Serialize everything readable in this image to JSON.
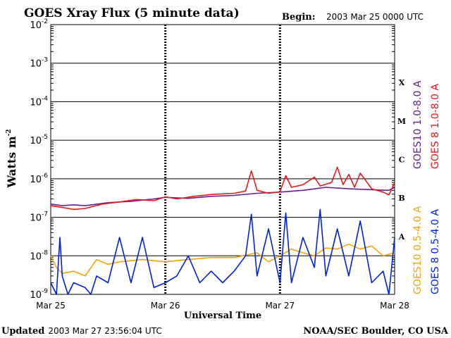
{
  "chart_data": {
    "type": "line",
    "title": "GOES Xray Flux (5 minute data)",
    "begin_label": "Begin:",
    "begin_value": "2003 Mar 25 0000 UTC",
    "ylabel": "Watts m",
    "ylabel_sup": "-2",
    "xlabel": "Universal Time",
    "y_scale": "log",
    "ylim": [
      1e-09,
      0.01
    ],
    "y_ticks": [
      {
        "exp": "-2",
        "value": 0.01
      },
      {
        "exp": "-3",
        "value": 0.001
      },
      {
        "exp": "-4",
        "value": 0.0001
      },
      {
        "exp": "-5",
        "value": 1e-05
      },
      {
        "exp": "-6",
        "value": 1e-06
      },
      {
        "exp": "-7",
        "value": 1e-07
      },
      {
        "exp": "-8",
        "value": 1e-08
      },
      {
        "exp": "-9",
        "value": 1e-09
      }
    ],
    "x_ticks": [
      "Mar 25",
      "Mar 26",
      "Mar 27",
      "Mar 28"
    ],
    "xlim_days": [
      0,
      3
    ],
    "flare_classes": [
      {
        "label": "X",
        "value": 0.000316
      },
      {
        "label": "M",
        "value": 3.16e-05
      },
      {
        "label": "C",
        "value": 3.16e-06
      },
      {
        "label": "B",
        "value": 3.16e-07
      },
      {
        "label": "A",
        "value": 3.16e-08
      }
    ],
    "series": [
      {
        "name": "GOES10 1.0-8.0 A",
        "color": "#6a1b9a",
        "x_days": [
          0.0,
          0.1,
          0.2,
          0.3,
          0.5,
          0.7,
          0.9,
          1.0,
          1.2,
          1.4,
          1.6,
          1.8,
          2.0,
          2.2,
          2.4,
          2.6,
          2.8,
          2.95,
          3.0
        ],
        "values": [
          2.2e-07,
          2e-07,
          2.1e-07,
          2e-07,
          2.4e-07,
          2.6e-07,
          3e-07,
          3.3e-07,
          3.1e-07,
          3.5e-07,
          3.7e-07,
          4.2e-07,
          4.5e-07,
          5e-07,
          6e-07,
          5.5e-07,
          5.2e-07,
          5e-07,
          6e-07
        ]
      },
      {
        "name": "GOES 8 1.0-8.0 A",
        "color": "#e41a1c",
        "x_days": [
          0.0,
          0.1,
          0.2,
          0.3,
          0.45,
          0.6,
          0.75,
          0.9,
          1.0,
          1.1,
          1.25,
          1.4,
          1.6,
          1.7,
          1.75,
          1.8,
          1.9,
          2.0,
          2.05,
          2.1,
          2.2,
          2.3,
          2.35,
          2.45,
          2.5,
          2.55,
          2.6,
          2.65,
          2.7,
          2.8,
          2.9,
          2.95,
          3.0
        ],
        "values": [
          2e-07,
          1.8e-07,
          1.6e-07,
          1.7e-07,
          2.2e-07,
          2.5e-07,
          2.9e-07,
          2.7e-07,
          3.4e-07,
          3e-07,
          3.5e-07,
          3.9e-07,
          4.2e-07,
          4.8e-07,
          1.6e-06,
          5e-07,
          4.2e-07,
          4.6e-07,
          1.2e-06,
          6e-07,
          7e-07,
          1.1e-06,
          6.5e-07,
          8e-07,
          2e-06,
          7e-07,
          1.3e-06,
          6e-07,
          1.4e-06,
          5.5e-07,
          4.5e-07,
          3.8e-07,
          8e-07
        ]
      },
      {
        "name": "GOES10 0.5-4.0 A",
        "color": "#f0a30a",
        "x_days": [
          0.0,
          0.05,
          0.1,
          0.2,
          0.3,
          0.4,
          0.5,
          0.6,
          0.8,
          1.0,
          1.2,
          1.4,
          1.6,
          1.8,
          1.9,
          2.0,
          2.1,
          2.2,
          2.3,
          2.4,
          2.5,
          2.6,
          2.7,
          2.8,
          2.9,
          3.0
        ],
        "values": [
          1e-08,
          5e-09,
          3.5e-09,
          4e-09,
          3e-09,
          8e-09,
          6e-09,
          7e-09,
          8e-09,
          7e-09,
          8e-09,
          9e-09,
          9e-09,
          1.2e-08,
          7e-09,
          1e-08,
          1.5e-08,
          1.2e-08,
          1e-08,
          1.6e-08,
          1.5e-08,
          2e-08,
          1.5e-08,
          1.8e-08,
          1e-08,
          1.2e-08
        ]
      },
      {
        "name": "GOES 8 0.5-4.0 A",
        "color": "#0022dd",
        "x_days": [
          0.0,
          0.05,
          0.08,
          0.1,
          0.15,
          0.2,
          0.3,
          0.35,
          0.4,
          0.5,
          0.6,
          0.7,
          0.8,
          0.9,
          1.0,
          1.1,
          1.2,
          1.3,
          1.4,
          1.5,
          1.6,
          1.7,
          1.75,
          1.8,
          1.9,
          2.0,
          2.05,
          2.1,
          2.2,
          2.3,
          2.35,
          2.4,
          2.5,
          2.6,
          2.7,
          2.8,
          2.9,
          2.95,
          3.0
        ],
        "values": [
          2e-09,
          1e-09,
          3e-08,
          3e-09,
          1e-09,
          2e-09,
          1.5e-09,
          1e-09,
          3e-09,
          2e-09,
          3e-08,
          2e-09,
          3e-08,
          1.5e-09,
          2e-09,
          3e-09,
          1e-08,
          2e-09,
          4e-09,
          2e-09,
          4e-09,
          1e-08,
          1.2e-07,
          3e-09,
          5e-08,
          2e-09,
          1.3e-07,
          2e-09,
          3e-08,
          5e-09,
          1.6e-07,
          3e-09,
          5e-08,
          3e-09,
          8e-08,
          2e-09,
          4e-09,
          1e-09,
          3e-08
        ]
      }
    ]
  },
  "footer": {
    "updated_label": "Updated",
    "updated_value": "2003 Mar 27 23:56:04 UTC",
    "source": "NOAA/SEC Boulder, CO USA"
  }
}
